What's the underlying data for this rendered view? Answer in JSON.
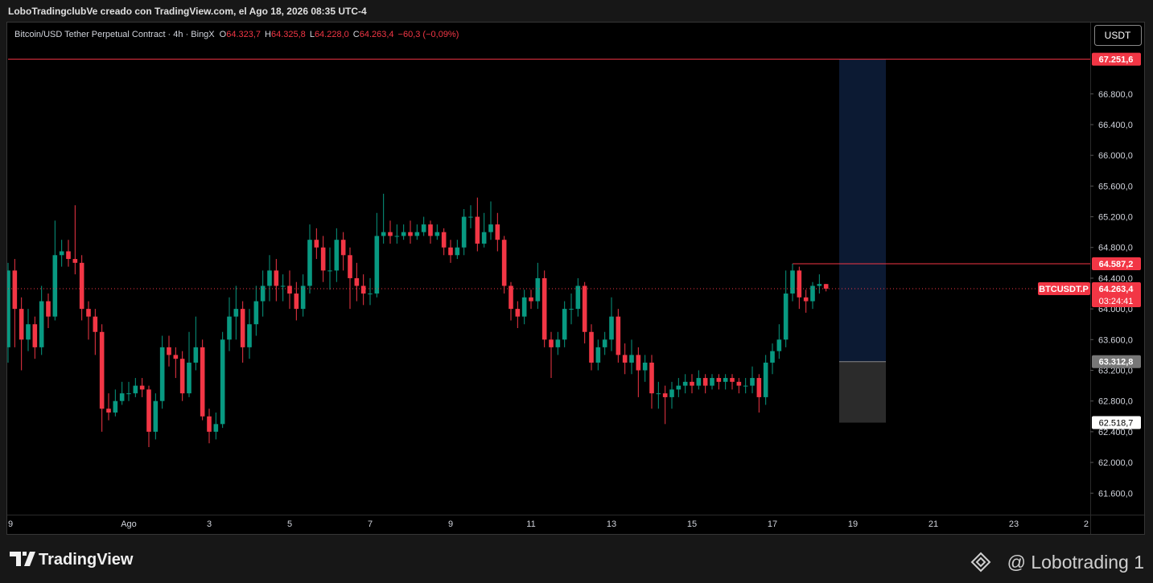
{
  "header": {
    "caption": "LoboTradingclubVe creado con TradingView.com, el Ago 18, 2026 08:35 UTC-4"
  },
  "currency_button": "USDT",
  "footer": {
    "brand": "TradingView",
    "watermark": "@ Lobotrading 1"
  },
  "chart_data": {
    "type": "candlestick",
    "legend": {
      "symbol": "Bitcoin/USD Tether Perpetual Contract · 4h · BingX",
      "items": [
        {
          "key": "O",
          "value": "64.323,7"
        },
        {
          "key": "H",
          "value": "64.325,8"
        },
        {
          "key": "L",
          "value": "64.228,0"
        },
        {
          "key": "C",
          "value": "64.263,4"
        }
      ],
      "change": "−60,3 (−0,09%)"
    },
    "up_color": "#089981",
    "down_color": "#f23645",
    "categories": [
      "9",
      null,
      null,
      null,
      null,
      null,
      null,
      null,
      null,
      null,
      null,
      null,
      null,
      null,
      null,
      null,
      null,
      null,
      "Ago",
      null,
      null,
      null,
      null,
      null,
      null,
      null,
      null,
      null,
      null,
      null,
      "3",
      null,
      null,
      null,
      null,
      null,
      null,
      null,
      null,
      null,
      null,
      null,
      "5",
      null,
      null,
      null,
      null,
      null,
      null,
      null,
      null,
      null,
      null,
      null,
      "7",
      null,
      null,
      null,
      null,
      null,
      null,
      null,
      null,
      null,
      null,
      null,
      "9",
      null,
      null,
      null,
      null,
      null,
      null,
      null,
      null,
      null,
      null,
      null,
      "11",
      null,
      null,
      null,
      null,
      null,
      null,
      null,
      null,
      null,
      null,
      null,
      "13",
      null,
      null,
      null,
      null,
      null,
      null,
      null,
      null,
      null,
      null,
      null,
      "15",
      null,
      null,
      null,
      null,
      null,
      null,
      null,
      null,
      null,
      null,
      null,
      "17",
      null,
      null,
      null,
      null,
      null,
      null,
      null,
      null,
      null,
      null,
      null,
      "19",
      null,
      null,
      null,
      null,
      null,
      null,
      null,
      null,
      null,
      null,
      null,
      "21",
      null,
      null,
      null,
      null,
      null,
      null,
      null,
      null,
      null,
      null,
      null,
      "23",
      null,
      null,
      null,
      null,
      null,
      null,
      null,
      null,
      null,
      null,
      null,
      "2"
    ],
    "open": [
      63500,
      64500,
      64000,
      63600,
      63800,
      63500,
      64100,
      63900,
      64700,
      64750,
      64650,
      64600,
      64000,
      63900,
      63700,
      62700,
      62650,
      62800,
      62900,
      62900,
      63000,
      62950,
      62400,
      62800,
      63500,
      63400,
      63350,
      62900,
      63300,
      63500,
      62600,
      62400,
      62500,
      63600,
      63900,
      64000,
      63500,
      63800,
      64100,
      64300,
      64500,
      64300,
      64300,
      64200,
      64000,
      64300,
      64900,
      64800,
      64500,
      64500,
      64900,
      64700,
      64400,
      64300,
      64200,
      64200,
      64950,
      65000,
      64950,
      64950,
      65000,
      64950,
      65000,
      65100,
      64950,
      65000,
      64800,
      64700,
      64800,
      65200,
      65200,
      64850,
      65000,
      65100,
      64900,
      64300,
      64000,
      63900,
      64150,
      64100,
      64400,
      63600,
      63500,
      63600,
      64000,
      64000,
      64300,
      63700,
      63300,
      63500,
      63600,
      63900,
      63400,
      63300,
      63400,
      63200,
      63300,
      62900,
      62900,
      62850,
      62950,
      63000,
      63050,
      63000,
      63100,
      63000,
      63100,
      63050,
      63100,
      63050,
      63000,
      63000,
      63100,
      62850,
      63300,
      63450,
      63600,
      64200,
      64500,
      64150,
      64100,
      64300,
      64323.7,
      null,
      null,
      null,
      null,
      null,
      null,
      null,
      null,
      null,
      null,
      null,
      null,
      null,
      null,
      null,
      null,
      null,
      null,
      null,
      null,
      null,
      null,
      null,
      null,
      null,
      null,
      null,
      null,
      null,
      null,
      null,
      null,
      null,
      null,
      null,
      null,
      null,
      null,
      null,
      null
    ],
    "high": [
      64600,
      64650,
      64150,
      64000,
      63900,
      64300,
      64200,
      65150,
      64900,
      64900,
      65350,
      64700,
      64100,
      64000,
      63800,
      62900,
      62950,
      63050,
      63050,
      63100,
      63100,
      63000,
      62900,
      63650,
      63650,
      63500,
      63450,
      63700,
      63900,
      63600,
      62700,
      62650,
      63700,
      64150,
      64300,
      64100,
      64000,
      64300,
      64500,
      64700,
      64650,
      64450,
      64500,
      64350,
      64450,
      65100,
      65050,
      64950,
      64800,
      65050,
      65000,
      64800,
      64600,
      64450,
      64400,
      65250,
      65500,
      65150,
      65100,
      65100,
      65150,
      65100,
      65200,
      65150,
      65100,
      65050,
      64900,
      64900,
      65300,
      65350,
      65450,
      65250,
      65400,
      65250,
      64950,
      64350,
      64100,
      64250,
      64250,
      64600,
      64500,
      63700,
      63700,
      64100,
      64200,
      64400,
      64350,
      63800,
      63600,
      63700,
      64150,
      64000,
      63550,
      63600,
      63500,
      63400,
      63400,
      63050,
      63000,
      63050,
      63100,
      63150,
      63150,
      63200,
      63150,
      63150,
      63150,
      63150,
      63150,
      63100,
      63100,
      63250,
      63150,
      63400,
      63550,
      63800,
      64500,
      64587.2,
      64550,
      64250,
      64350,
      64450,
      64325.8,
      null,
      null,
      null,
      null,
      null,
      null,
      null,
      null,
      null,
      null,
      null,
      null,
      null,
      null,
      null,
      null,
      null,
      null,
      null,
      null,
      null,
      null,
      null,
      null,
      null,
      null,
      null,
      null,
      null,
      null,
      null,
      null,
      null,
      null,
      null,
      null,
      null,
      null,
      null,
      null
    ],
    "low": [
      63300,
      63500,
      63200,
      63450,
      63350,
      63400,
      63750,
      63850,
      64550,
      64550,
      64450,
      63850,
      63600,
      63400,
      62400,
      62550,
      62600,
      62750,
      62800,
      62850,
      62850,
      62200,
      62300,
      62700,
      63250,
      63100,
      62800,
      62850,
      63200,
      62550,
      62250,
      62300,
      62450,
      63450,
      63600,
      63300,
      63350,
      63650,
      63900,
      64100,
      64100,
      64100,
      64000,
      63850,
      63900,
      64200,
      64650,
      64350,
      64250,
      64350,
      64500,
      64000,
      64100,
      64050,
      64050,
      64150,
      64850,
      64850,
      64850,
      64900,
      64850,
      64900,
      64950,
      64850,
      64900,
      64700,
      64600,
      64650,
      64700,
      65050,
      64750,
      64800,
      64900,
      64750,
      64200,
      63850,
      63750,
      63800,
      64000,
      64000,
      63500,
      63100,
      63400,
      63500,
      63800,
      63900,
      63550,
      63200,
      63200,
      63400,
      63450,
      63300,
      63150,
      63150,
      62850,
      63050,
      62700,
      62700,
      62500,
      62700,
      62850,
      62900,
      62900,
      62950,
      62900,
      62950,
      62950,
      62950,
      62950,
      62900,
      62900,
      62900,
      62650,
      62750,
      63150,
      63350,
      63500,
      64100,
      64000,
      63950,
      64000,
      64200,
      64228.0,
      null,
      null,
      null,
      null,
      null,
      null,
      null,
      null,
      null,
      null,
      null,
      null,
      null,
      null,
      null,
      null,
      null,
      null,
      null,
      null,
      null,
      null,
      null,
      null,
      null,
      null,
      null,
      null,
      null,
      null,
      null,
      null,
      null,
      null,
      null,
      null,
      null,
      null,
      null,
      null
    ],
    "close": [
      64500,
      64000,
      63600,
      63800,
      63500,
      64100,
      63900,
      64700,
      64750,
      64650,
      64600,
      64000,
      63900,
      63700,
      62700,
      62650,
      62800,
      62900,
      62900,
      63000,
      62950,
      62400,
      62800,
      63500,
      63400,
      63350,
      62900,
      63300,
      63500,
      62600,
      62400,
      62500,
      63600,
      63900,
      64000,
      63500,
      63800,
      64100,
      64300,
      64500,
      64300,
      64300,
      64200,
      64000,
      64300,
      64900,
      64800,
      64500,
      64500,
      64900,
      64700,
      64400,
      64300,
      64200,
      64200,
      64950,
      65000,
      64950,
      64950,
      65000,
      64950,
      65000,
      65100,
      64950,
      65000,
      64800,
      64700,
      64800,
      65200,
      65200,
      64850,
      65000,
      65100,
      64900,
      64300,
      64000,
      63900,
      64150,
      64100,
      64400,
      63600,
      63500,
      63600,
      64000,
      64000,
      64300,
      63700,
      63300,
      63500,
      63600,
      63900,
      63400,
      63300,
      63400,
      63200,
      63300,
      62900,
      62900,
      62850,
      62950,
      63000,
      63050,
      63000,
      63100,
      63000,
      63100,
      63050,
      63100,
      63050,
      63000,
      63000,
      63100,
      62850,
      63300,
      63450,
      63600,
      64200,
      64500,
      64150,
      64100,
      64300,
      64323.7,
      64263.4,
      null,
      null,
      null,
      null,
      null,
      null,
      null,
      null,
      null,
      null,
      null,
      null,
      null,
      null,
      null,
      null,
      null,
      null,
      null,
      null,
      null,
      null,
      null,
      null,
      null,
      null,
      null,
      null,
      null,
      null,
      null,
      null,
      null,
      null,
      null,
      null,
      null,
      null,
      null,
      null
    ],
    "ylim": [
      61320,
      67730
    ],
    "yticks": [
      {
        "value": 61600,
        "label": "61.600,0"
      },
      {
        "value": 62000,
        "label": "62.000,0"
      },
      {
        "value": 62400,
        "label": "62.400,0"
      },
      {
        "value": 62800,
        "label": "62.800,0"
      },
      {
        "value": 63200,
        "label": "63.200,0"
      },
      {
        "value": 63600,
        "label": "63.600,0"
      },
      {
        "value": 64000,
        "label": "64.000,0"
      },
      {
        "value": 64400,
        "label": "64.400,0"
      },
      {
        "value": 64800,
        "label": "64.800,0"
      },
      {
        "value": 65200,
        "label": "65.200,0"
      },
      {
        "value": 65600,
        "label": "65.600,0"
      },
      {
        "value": 66000,
        "label": "66.000,0"
      },
      {
        "value": 66400,
        "label": "66.400,0"
      },
      {
        "value": 66800,
        "label": "66.800,0"
      }
    ],
    "position": {
      "target": 67251.6,
      "target_label": "67.251,6",
      "entry": 63312.8,
      "entry_label": "63.312,8",
      "stop": 62518.7,
      "stop_label": "62.518,7"
    },
    "ray": {
      "value": 64587.2,
      "label": "64.587,2"
    },
    "last_price": {
      "symbol": "BTCUSDT.P",
      "label": "64.263,4",
      "countdown": "03:24:41"
    }
  }
}
